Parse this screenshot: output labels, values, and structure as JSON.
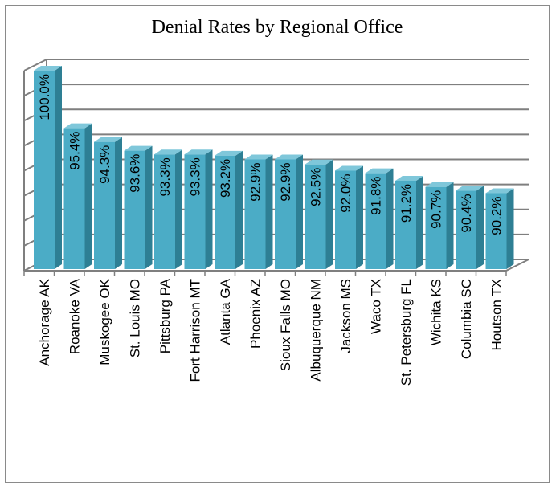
{
  "chart_data": {
    "type": "bar",
    "title": "Denial Rates by Regional Office",
    "xlabel": "",
    "ylabel": "",
    "categories": [
      "Anchorage AK",
      "Roanoke VA",
      "Muskogee OK",
      "St. Louis MO",
      "Pittsburg PA",
      "Fort Harrison MT",
      "Atlanta GA",
      "Phoenix AZ",
      "Sioux Falls MO",
      "Albuquerque NM",
      "Jackson MS",
      "Waco TX",
      "St. Petersburg FL",
      "Wichita KS",
      "Columbia SC",
      "Houtson TX"
    ],
    "values": [
      100.0,
      95.4,
      94.3,
      93.6,
      93.3,
      93.3,
      93.2,
      92.9,
      92.9,
      92.5,
      92.0,
      91.8,
      91.2,
      90.7,
      90.4,
      90.2
    ],
    "value_labels": [
      "100.0%",
      "95.4%",
      "94.3%",
      "93.6%",
      "93.3%",
      "93.3%",
      "93.2%",
      "92.9%",
      "92.9%",
      "92.5%",
      "92.0%",
      "91.8%",
      "91.2%",
      "90.7%",
      "90.4%",
      "90.2%"
    ],
    "ylim": [
      84,
      100
    ],
    "gridlines": 8,
    "grid": true,
    "legend": "none",
    "style": "3d-columns",
    "colors": {
      "bar_front": "#4bacc6",
      "bar_side": "#2e7f94",
      "bar_top": "#7fc7da",
      "grid": "#7f7f7f"
    }
  }
}
